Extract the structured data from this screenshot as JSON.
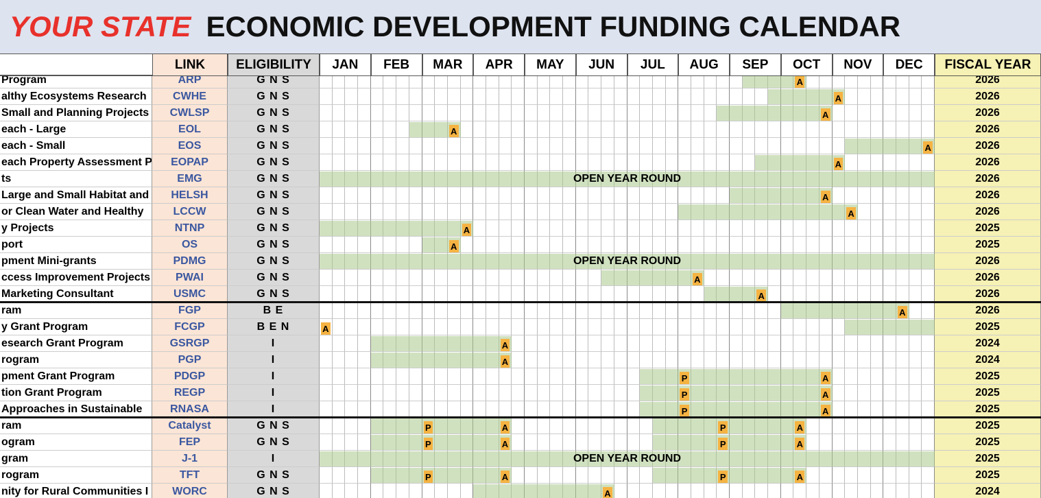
{
  "title": {
    "state": "YOUR STATE",
    "rest": "ECONOMIC DEVELOPMENT FUNDING CALENDAR"
  },
  "columns": {
    "link": "LINK",
    "eligibility": "ELIGIBILITY",
    "months": [
      "JAN",
      "FEB",
      "MAR",
      "APR",
      "MAY",
      "JUN",
      "JUL",
      "AUG",
      "SEP",
      "OCT",
      "NOV",
      "DEC"
    ],
    "fiscal_year": "FISCAL YEAR"
  },
  "rows": [
    {
      "name": "Program",
      "link": "ARP",
      "eligibility": "G N S",
      "fiscal_year": 2026,
      "marks": [
        "A"
      ]
    },
    {
      "name": "althy Ecosystems Research",
      "link": "CWHE",
      "eligibility": "G N S",
      "fiscal_year": 2026,
      "marks": [
        "A"
      ]
    },
    {
      "name": "Small and Planning Projects",
      "link": "CWLSP",
      "eligibility": "G N S",
      "fiscal_year": 2026,
      "marks": [
        "A"
      ]
    },
    {
      "name": "each - Large",
      "link": "EOL",
      "eligibility": "G N S",
      "fiscal_year": 2026,
      "marks": [
        "A"
      ]
    },
    {
      "name": "each - Small",
      "link": "EOS",
      "eligibility": "G N S",
      "fiscal_year": 2026,
      "marks": [
        "A"
      ]
    },
    {
      "name": "each Property Assessment P",
      "link": "EOPAP",
      "eligibility": "G N S",
      "fiscal_year": 2026,
      "marks": [
        "A"
      ]
    },
    {
      "name": "ts",
      "link": "EMG",
      "eligibility": "G N S",
      "fiscal_year": 2026,
      "note": "OPEN YEAR ROUND"
    },
    {
      "name": "Large and Small Habitat and",
      "link": "HELSH",
      "eligibility": "G N S",
      "fiscal_year": 2026,
      "marks": [
        "A"
      ]
    },
    {
      "name": "or Clean Water and Healthy",
      "link": "LCCW",
      "eligibility": "G N S",
      "fiscal_year": 2026,
      "marks": [
        "A"
      ]
    },
    {
      "name": "y Projects",
      "link": "NTNP",
      "eligibility": "G N S",
      "fiscal_year": 2025,
      "marks": [
        "A"
      ]
    },
    {
      "name": "port",
      "link": "OS",
      "eligibility": "G N S",
      "fiscal_year": 2025,
      "marks": [
        "A"
      ]
    },
    {
      "name": "pment Mini-grants",
      "link": "PDMG",
      "eligibility": "G N S",
      "fiscal_year": 2026,
      "note": "OPEN YEAR ROUND"
    },
    {
      "name": "ccess Improvement Projects",
      "link": "PWAI",
      "eligibility": "G N S",
      "fiscal_year": 2026,
      "marks": [
        "A"
      ]
    },
    {
      "name": "Marketing Consultant",
      "link": "USMC",
      "eligibility": "G N S",
      "fiscal_year": 2026,
      "marks": [
        "A"
      ]
    },
    {
      "name": "ram",
      "link": "FGP",
      "eligibility": "B E",
      "fiscal_year": 2026,
      "marks": [
        "A"
      ]
    },
    {
      "name": "y Grant Program",
      "link": "FCGP",
      "eligibility": "B E N",
      "fiscal_year": 2025,
      "marks": [
        "A"
      ]
    },
    {
      "name": "esearch Grant Program",
      "link": "GSRGP",
      "eligibility": "I",
      "fiscal_year": 2024,
      "marks": [
        "A"
      ]
    },
    {
      "name": "rogram",
      "link": "PGP",
      "eligibility": "I",
      "fiscal_year": 2024,
      "marks": [
        "A"
      ]
    },
    {
      "name": "pment Grant Program",
      "link": "PDGP",
      "eligibility": "I",
      "fiscal_year": 2025,
      "marks": [
        "P",
        "A"
      ]
    },
    {
      "name": "tion Grant Program",
      "link": "REGP",
      "eligibility": "I",
      "fiscal_year": 2025,
      "marks": [
        "P",
        "A"
      ]
    },
    {
      "name": "Approaches in Sustainable",
      "link": "RNASA",
      "eligibility": "I",
      "fiscal_year": 2025,
      "marks": [
        "P",
        "A"
      ]
    },
    {
      "name": "ram",
      "link": "Catalyst",
      "eligibility": "G N S",
      "fiscal_year": 2025,
      "marks": [
        "P",
        "A",
        "P",
        "A"
      ]
    },
    {
      "name": "ogram",
      "link": "FEP",
      "eligibility": "G N S",
      "fiscal_year": 2025,
      "marks": [
        "P",
        "A",
        "P",
        "A"
      ]
    },
    {
      "name": "gram",
      "link": "J-1",
      "eligibility": "I",
      "fiscal_year": 2025,
      "note": "OPEN YEAR ROUND"
    },
    {
      "name": "rogram",
      "link": "TFT",
      "eligibility": "G N S",
      "fiscal_year": 2025,
      "marks": [
        "P",
        "A",
        "P",
        "A"
      ]
    },
    {
      "name": "nity for Rural Communities I",
      "link": "WORC",
      "eligibility": "G N S",
      "fiscal_year": 2024,
      "marks": [
        "A"
      ]
    }
  ]
}
